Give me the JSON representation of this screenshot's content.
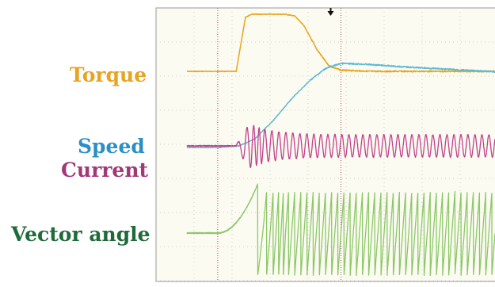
{
  "chart_data": {
    "type": "line",
    "title": "",
    "xlabel": "",
    "ylabel": "",
    "grid": true,
    "colors": {
      "background": "#fbfbf1",
      "grid": "#cfcfc4",
      "border": "#9a9a9a",
      "marker_line": "#a8476f",
      "trigger_arrow": "#111111"
    },
    "x_range": [
      0,
      10
    ],
    "markers": [
      1.0,
      5.0
    ],
    "trigger_x": 5.0,
    "series": [
      {
        "name": "Torque",
        "color": "#e9a31b",
        "label_color": "#e8a321",
        "points": [
          [
            0,
            0
          ],
          [
            1.0,
            0
          ],
          [
            1.6,
            0
          ],
          [
            1.9,
            0.95
          ],
          [
            2.1,
            1
          ],
          [
            3.2,
            1
          ],
          [
            3.5,
            0.97
          ],
          [
            3.8,
            0.8
          ],
          [
            4.2,
            0.4
          ],
          [
            4.6,
            0.1
          ],
          [
            5.0,
            0.02
          ],
          [
            6,
            0.0
          ],
          [
            10,
            0.0
          ]
        ]
      },
      {
        "name": "Speed",
        "color": "#5dbad3",
        "label_color": "#2a8fc4",
        "points": [
          [
            0,
            0
          ],
          [
            1.0,
            0
          ],
          [
            1.7,
            0.02
          ],
          [
            2.2,
            0.1
          ],
          [
            2.8,
            0.32
          ],
          [
            3.4,
            0.58
          ],
          [
            4.0,
            0.8
          ],
          [
            4.5,
            0.94
          ],
          [
            5.0,
            1
          ],
          [
            5.8,
            0.99
          ],
          [
            7,
            0.96
          ],
          [
            8.5,
            0.93
          ],
          [
            10,
            0.9
          ]
        ]
      },
      {
        "name": "Current",
        "color": "#c1418d",
        "label_color": "#a1387a",
        "signal": "oscillation",
        "onset_x": 1.6,
        "peak_x": 2.2,
        "steady_amplitude": 0.35,
        "initial_amplitude": 1.0,
        "cycles_per_unit": 4.4
      },
      {
        "name": "Vector angle",
        "color": "#8cc768",
        "label_color": "#1f6a3b",
        "signal": "sawtooth",
        "ramp_start_x": 1.0,
        "first_drop_x": 2.3,
        "cycles_per_unit": 5.0,
        "amplitude": 1.0
      }
    ]
  }
}
